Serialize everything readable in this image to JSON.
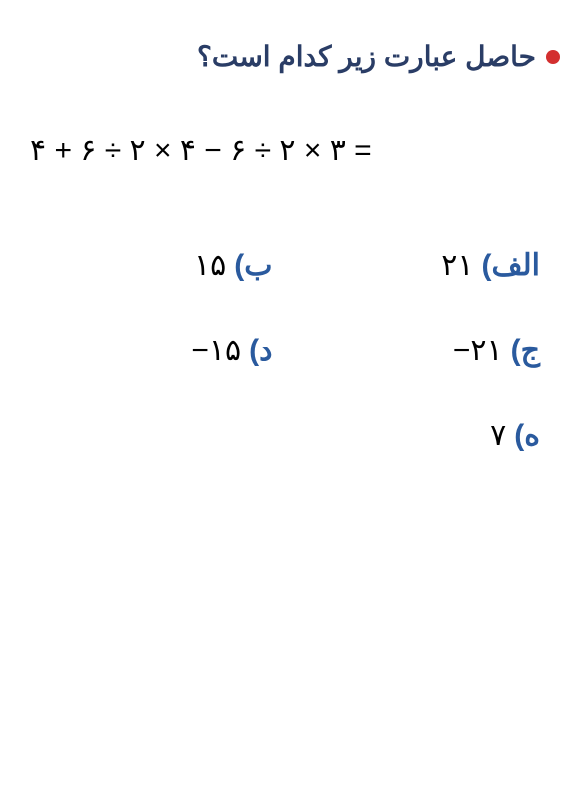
{
  "question": {
    "text": "حاصل عبارت زیر کدام است؟",
    "bullet_color": "#d32f2f",
    "text_color": "#2a3d66",
    "fontsize": 28
  },
  "expression": {
    "text": "۴ + ۶ ÷ ۲ × ۴ − ۶ ÷ ۲ × ۳ =",
    "color": "#000000",
    "fontsize": 30
  },
  "options": {
    "a": {
      "label": "الف)",
      "value": "۲۱"
    },
    "b": {
      "label": "ب)",
      "value": "۱۵"
    },
    "c": {
      "label": "ج)",
      "value": "−۲۱"
    },
    "d": {
      "label": "د)",
      "value": "−۱۵"
    },
    "e": {
      "label": "ه)",
      "value": "۷"
    }
  },
  "colors": {
    "label_color": "#2a5a9e",
    "value_color": "#000000",
    "background": "#ffffff"
  }
}
